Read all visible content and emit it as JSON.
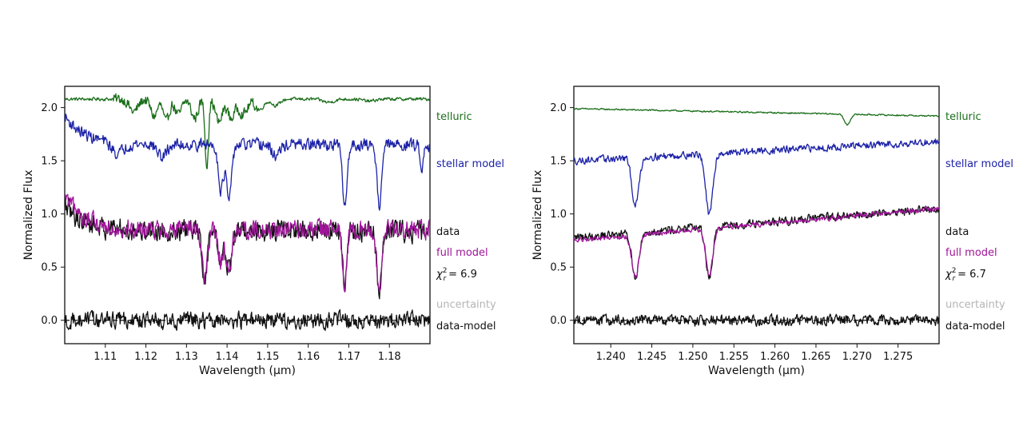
{
  "chart_data": [
    {
      "type": "line",
      "xlabel": "Wavelength (μm)",
      "ylabel": "Normalized Flux",
      "xlim": [
        1.1,
        1.19
      ],
      "ylim": [
        -0.22,
        2.2
      ],
      "x_ticks": [
        1.11,
        1.12,
        1.13,
        1.14,
        1.15,
        1.16,
        1.17,
        1.18
      ],
      "x_tick_labels": [
        "1.11",
        "1.12",
        "1.13",
        "1.14",
        "1.15",
        "1.16",
        "1.17",
        "1.18"
      ],
      "y_ticks": [
        0.0,
        0.5,
        1.0,
        1.5,
        2.0
      ],
      "y_tick_labels": [
        "0.0",
        "0.5",
        "1.0",
        "1.5",
        "2.0"
      ],
      "zero_line": true,
      "chi_label": "= 6.9",
      "legend_position": "right",
      "series": [
        {
          "name": "telluric",
          "color": "#1a6e1a",
          "base": 2.08,
          "lines": [
            [
              1.117,
              0.12,
              0.0015
            ],
            [
              1.122,
              0.16,
              0.0012
            ],
            [
              1.125,
              0.22,
              0.001
            ],
            [
              1.128,
              0.15,
              0.0012
            ],
            [
              1.132,
              0.18,
              0.0012
            ],
            [
              1.135,
              0.62,
              0.0006
            ],
            [
              1.138,
              0.22,
              0.0012
            ],
            [
              1.141,
              0.18,
              0.0012
            ],
            [
              1.144,
              0.14,
              0.0015
            ],
            [
              1.148,
              0.1,
              0.0015
            ],
            [
              1.152,
              0.06,
              0.0015
            ],
            [
              1.165,
              0.03,
              0.002
            ],
            [
              1.175,
              0.02,
              0.002
            ]
          ],
          "noise": 0.045,
          "noise_window": [
            1.112,
            1.148
          ]
        },
        {
          "name": "stellar model",
          "color": "#1c22a8",
          "base": 1.65,
          "slope_start": 1.92,
          "lines": [
            [
              1.113,
              0.1,
              0.002
            ],
            [
              1.124,
              0.12,
              0.0015
            ],
            [
              1.1385,
              0.42,
              0.0009
            ],
            [
              1.1405,
              0.52,
              0.0009
            ],
            [
              1.152,
              0.1,
              0.0015
            ],
            [
              1.169,
              0.58,
              0.0008
            ],
            [
              1.1775,
              0.56,
              0.0008
            ],
            [
              1.188,
              0.2,
              0.0006
            ]
          ],
          "noise": 0.05,
          "noise_window": [
            1.1,
            1.19
          ]
        },
        {
          "name": "data",
          "color": "#111111",
          "base": 0.84,
          "slope_start": 1.08,
          "lines": [
            [
              1.1345,
              0.45,
              0.0009
            ],
            [
              1.1385,
              0.3,
              0.0009
            ],
            [
              1.1405,
              0.38,
              0.0009
            ],
            [
              1.169,
              0.5,
              0.0008
            ],
            [
              1.1775,
              0.6,
              0.0008
            ]
          ],
          "noise": 0.09,
          "noise_window": [
            1.1,
            1.19
          ]
        },
        {
          "name": "full model",
          "color": "#a0149a",
          "base": 0.85,
          "slope_start": 1.15,
          "lines": [
            [
              1.1345,
              0.45,
              0.0009
            ],
            [
              1.1385,
              0.3,
              0.0009
            ],
            [
              1.1405,
              0.38,
              0.0009
            ],
            [
              1.169,
              0.5,
              0.0008
            ],
            [
              1.1775,
              0.6,
              0.0008
            ]
          ],
          "noise": 0.08,
          "noise_window": [
            1.1,
            1.19
          ]
        },
        {
          "name": "uncertainty",
          "color": "#b5b5b5"
        },
        {
          "name": "data-model",
          "color": "#111111",
          "base": 0.0,
          "noise": 0.07,
          "noise_window": [
            1.1,
            1.19
          ]
        }
      ]
    },
    {
      "type": "line",
      "xlabel": "Wavelength (μm)",
      "ylabel": "Normalized Flux",
      "xlim": [
        1.2355,
        1.28
      ],
      "ylim": [
        -0.22,
        2.2
      ],
      "x_ticks": [
        1.24,
        1.245,
        1.25,
        1.255,
        1.26,
        1.265,
        1.27,
        1.275
      ],
      "x_tick_labels": [
        "1.240",
        "1.245",
        "1.250",
        "1.255",
        "1.260",
        "1.265",
        "1.270",
        "1.275"
      ],
      "y_ticks": [
        0.0,
        0.5,
        1.0,
        1.5,
        2.0
      ],
      "y_tick_labels": [
        "0.0",
        "0.5",
        "1.0",
        "1.5",
        "2.0"
      ],
      "zero_line": true,
      "chi_label": "= 6.7",
      "legend_position": "right",
      "series": [
        {
          "name": "telluric",
          "color": "#1a6e1a",
          "base": 1.99,
          "slope_end": 1.92,
          "lines": [
            [
              1.2688,
              0.1,
              0.0005
            ]
          ],
          "noise": 0.006
        },
        {
          "name": "stellar model",
          "color": "#1c22a8",
          "base": 1.5,
          "slope_end": 1.68,
          "lines": [
            [
              1.243,
              0.45,
              0.0006
            ],
            [
              1.252,
              0.58,
              0.0006
            ]
          ],
          "noise": 0.03
        },
        {
          "name": "data",
          "color": "#111111",
          "base": 0.78,
          "slope_end": 1.05,
          "lines": [
            [
              1.243,
              0.42,
              0.0006
            ],
            [
              1.252,
              0.47,
              0.0006
            ]
          ],
          "noise": 0.035
        },
        {
          "name": "full model",
          "color": "#a0149a",
          "base": 0.75,
          "slope_end": 1.05,
          "lines": [
            [
              1.243,
              0.4,
              0.0006
            ],
            [
              1.252,
              0.44,
              0.0006
            ]
          ],
          "noise": 0.02
        },
        {
          "name": "uncertainty",
          "color": "#b5b5b5"
        },
        {
          "name": "data-model",
          "color": "#111111",
          "base": 0.0,
          "noise": 0.045
        }
      ]
    }
  ]
}
